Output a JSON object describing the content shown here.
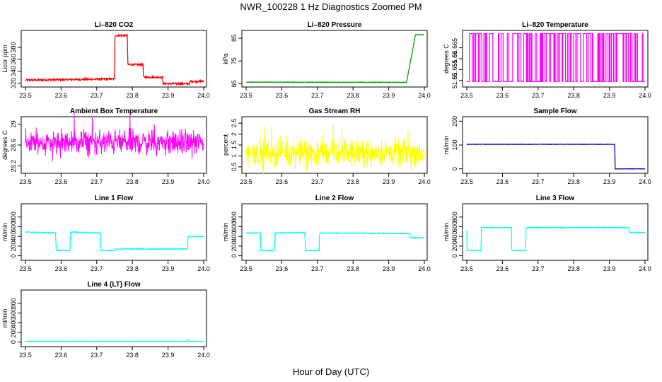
{
  "page_title": "NWR_100228  1 Hz Diagnostics Zoomed PM",
  "x_axis_title": "Hour of Day (UTC)",
  "chart_data": [
    {
      "type": "line",
      "title": "Li–820 CO2",
      "ylabel": "Licor ppm",
      "color": "#ff0000",
      "xlim": [
        23.5,
        24.0
      ],
      "ylim": [
        317,
        405
      ],
      "yticks": [
        320,
        340,
        360,
        380
      ],
      "xticks": [
        23.5,
        23.6,
        23.7,
        23.8,
        23.9,
        24.0
      ],
      "noise": 1.5,
      "x": [
        23.5,
        23.75,
        23.751,
        23.786,
        23.787,
        23.83,
        23.831,
        23.885,
        23.886,
        23.96,
        23.961,
        24.0
      ],
      "y": [
        325,
        327,
        400,
        400,
        351,
        351,
        330,
        330,
        319,
        319,
        323,
        323
      ]
    },
    {
      "type": "line",
      "title": "Li–820 Pressure",
      "ylabel": "kPa",
      "color": "#00a000",
      "xlim": [
        23.5,
        24.0
      ],
      "ylim": [
        64.5,
        87.5
      ],
      "yticks": [
        65,
        75,
        85
      ],
      "xticks": [
        23.5,
        23.6,
        23.7,
        23.8,
        23.9,
        24.0
      ],
      "noise": 0.1,
      "x": [
        23.5,
        23.95,
        23.965,
        23.975,
        24.0
      ],
      "y": [
        65.7,
        65.6,
        78,
        86.5,
        86.6
      ]
    },
    {
      "type": "toggle",
      "title": "Li–820 Temperature",
      "ylabel": "degrees C",
      "color": "#ff00ff",
      "xlim": [
        23.5,
        24.0
      ],
      "ylim": [
        51.648,
        51.672
      ],
      "yticks": [
        51.65,
        51.655,
        51.66,
        51.665
      ],
      "xticks": [
        23.5,
        23.6,
        23.7,
        23.8,
        23.9,
        24.0
      ],
      "levels": [
        51.6495,
        51.6715
      ]
    },
    {
      "type": "noise",
      "title": "Ambient Box Temperature",
      "ylabel": "degrees C",
      "color": "#ff00ff",
      "xlim": [
        23.5,
        24.0
      ],
      "ylim": [
        28.1,
        29.1
      ],
      "yticks": [
        28.2,
        28.6,
        29.0
      ],
      "xticks": [
        23.5,
        23.6,
        23.7,
        23.8,
        23.9,
        24.0
      ],
      "center": 28.65,
      "amp": 0.35
    },
    {
      "type": "noise",
      "title": "Gas Stream RH",
      "ylabel": "percent",
      "color": "#ffff00",
      "xlim": [
        23.5,
        24.0
      ],
      "ylim": [
        0.3,
        2.7
      ],
      "yticks": [
        0.5,
        1.0,
        1.5,
        2.0,
        2.5
      ],
      "xticks": [
        23.5,
        23.6,
        23.7,
        23.8,
        23.9,
        24.0
      ],
      "center": 1.15,
      "amp": 0.9
    },
    {
      "type": "line",
      "title": "Sample Flow",
      "ylabel": "ml/min",
      "color": "#0000c0",
      "xlim": [
        23.5,
        24.0
      ],
      "ylim": [
        -10,
        210
      ],
      "yticks": [
        0,
        100,
        200
      ],
      "xticks": [
        23.5,
        23.6,
        23.7,
        23.8,
        23.9,
        24.0
      ],
      "noise": 0.8,
      "x": [
        23.5,
        23.915,
        23.916,
        24.0
      ],
      "y": [
        103,
        103,
        0,
        0
      ]
    },
    {
      "type": "line",
      "title": "Line 1 Flow",
      "ylabel": "ml/min",
      "color": "#00ffff",
      "xlim": [
        23.5,
        24.0
      ],
      "ylim": [
        -50,
        1030
      ],
      "yticks": [
        0,
        200,
        400,
        600,
        800
      ],
      "xticks": [
        23.5,
        23.6,
        23.7,
        23.8,
        23.9,
        24.0
      ],
      "noise": 8,
      "x": [
        23.5,
        23.501,
        23.585,
        23.586,
        23.625,
        23.626,
        23.71,
        23.711,
        23.75,
        23.751,
        23.955,
        23.956,
        24.0
      ],
      "y": [
        500,
        490,
        470,
        110,
        110,
        490,
        470,
        110,
        110,
        140,
        140,
        400,
        400
      ]
    },
    {
      "type": "line",
      "title": "Line 2 Flow",
      "ylabel": "ml/min",
      "color": "#00ffff",
      "xlim": [
        23.5,
        24.0
      ],
      "ylim": [
        -50,
        1030
      ],
      "yticks": [
        0,
        200,
        400,
        600,
        800
      ],
      "xticks": [
        23.5,
        23.6,
        23.7,
        23.8,
        23.9,
        24.0
      ],
      "noise": 8,
      "x": [
        23.5,
        23.54,
        23.541,
        23.58,
        23.581,
        23.665,
        23.666,
        23.705,
        23.706,
        23.96,
        23.961,
        24.0
      ],
      "y": [
        470,
        470,
        110,
        110,
        470,
        480,
        110,
        110,
        470,
        460,
        370,
        370
      ]
    },
    {
      "type": "line",
      "title": "Line 3 Flow",
      "ylabel": "ml/min",
      "color": "#00ffff",
      "xlim": [
        23.5,
        24.0
      ],
      "ylim": [
        -50,
        1030
      ],
      "yticks": [
        0,
        200,
        400,
        600,
        800
      ],
      "xticks": [
        23.5,
        23.6,
        23.7,
        23.8,
        23.9,
        24.0
      ],
      "noise": 8,
      "x": [
        23.5,
        23.501,
        23.54,
        23.541,
        23.625,
        23.626,
        23.665,
        23.666,
        23.955,
        23.956,
        24.0
      ],
      "y": [
        520,
        110,
        110,
        580,
        580,
        110,
        110,
        580,
        580,
        480,
        480
      ]
    },
    {
      "type": "line",
      "title": "Line 4 (LT) Flow",
      "ylabel": "ml/min",
      "color": "#00ffff",
      "xlim": [
        23.5,
        24.0
      ],
      "ylim": [
        -50,
        1030
      ],
      "yticks": [
        0,
        200,
        400,
        600,
        800
      ],
      "xticks": [
        23.5,
        23.6,
        23.7,
        23.8,
        23.9,
        24.0
      ],
      "noise": 2,
      "x": [
        23.5,
        23.955,
        23.956,
        23.96,
        23.961,
        24.0
      ],
      "y": [
        15,
        15,
        60,
        15,
        15,
        15
      ]
    }
  ]
}
